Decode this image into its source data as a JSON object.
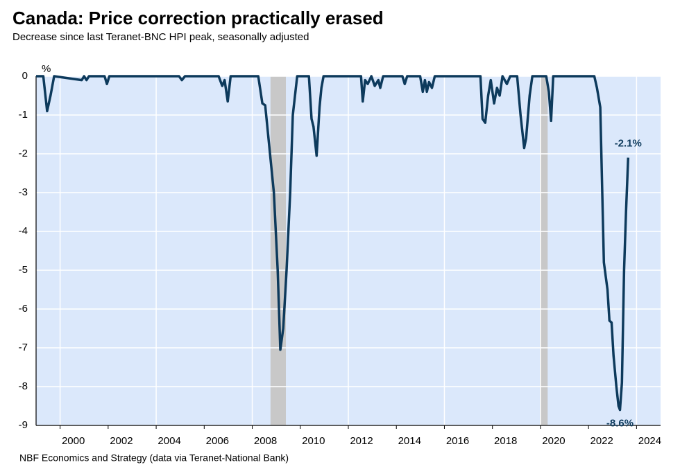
{
  "chart_data": {
    "type": "line",
    "title": "Canada: Price correction practically erased",
    "subtitle": "Decrease since last Teranet-BNC HPI peak, seasonally adjusted",
    "y_label": "%",
    "source": "NBF Economics and Strategy (data via Teranet-National Bank)",
    "x": [
      1999.0,
      1999.3,
      1999.46,
      1999.6,
      1999.75,
      2000.9,
      2001.0,
      2001.1,
      2001.2,
      2001.85,
      2001.95,
      2002.05,
      2004.95,
      2005.07,
      2005.2,
      2006.6,
      2006.75,
      2006.85,
      2006.98,
      2007.1,
      2008.25,
      2008.42,
      2008.54,
      2008.9,
      2009.06,
      2009.17,
      2009.29,
      2009.43,
      2009.58,
      2009.69,
      2009.87,
      2010.36,
      2010.47,
      2010.55,
      2010.68,
      2010.8,
      2010.88,
      2010.97,
      2012.53,
      2012.6,
      2012.7,
      2012.81,
      2012.96,
      2013.1,
      2013.25,
      2013.33,
      2013.45,
      2014.25,
      2014.35,
      2014.45,
      2014.99,
      2015.1,
      2015.19,
      2015.27,
      2015.36,
      2015.48,
      2015.6,
      2017.5,
      2017.59,
      2017.7,
      2017.82,
      2017.93,
      2018.07,
      2018.19,
      2018.3,
      2018.42,
      2018.6,
      2018.74,
      2018.88,
      2019.03,
      2019.17,
      2019.32,
      2019.4,
      2019.55,
      2019.66,
      2020.24,
      2020.35,
      2020.44,
      2020.53,
      2022.24,
      2022.35,
      2022.49,
      2022.64,
      2022.79,
      2022.87,
      2022.96,
      2023.04,
      2023.16,
      2023.25,
      2023.31,
      2023.39,
      2023.48,
      2023.56,
      2023.65
    ],
    "series": [
      {
        "name": "Canada",
        "color": "#0d3a5c",
        "values": [
          0,
          0,
          -0.9,
          -0.5,
          0,
          -0.1,
          0,
          -0.1,
          0,
          0,
          -0.2,
          0,
          0,
          -0.1,
          0,
          0,
          -0.25,
          -0.1,
          -0.65,
          0,
          0,
          -0.7,
          -0.75,
          -3.0,
          -5.0,
          -7.05,
          -6.5,
          -5.0,
          -3.0,
          -1.0,
          0,
          0,
          -1.1,
          -1.3,
          -2.05,
          -0.8,
          -0.3,
          0,
          0,
          -0.65,
          -0.1,
          -0.2,
          0,
          -0.25,
          -0.1,
          -0.3,
          0,
          0,
          -0.2,
          0,
          0,
          -0.4,
          -0.1,
          -0.4,
          -0.15,
          -0.3,
          0,
          0,
          -1.1,
          -1.2,
          -0.5,
          -0.1,
          -0.7,
          -0.3,
          -0.5,
          0,
          -0.2,
          0,
          0,
          0,
          -1.0,
          -1.85,
          -1.6,
          -0.5,
          0,
          0,
          -0.4,
          -1.15,
          0,
          0,
          -0.3,
          -0.8,
          -4.8,
          -5.5,
          -6.3,
          -6.35,
          -7.2,
          -8.0,
          -8.5,
          -8.6,
          -7.9,
          -5.0,
          -3.5,
          -2.1
        ]
      }
    ],
    "annotations": [
      {
        "text": "-2.1%",
        "x": 2023.65,
        "y": -2.1
      },
      {
        "text": "-8.6%",
        "x": 2023.31,
        "y": -8.6
      }
    ],
    "shaded_ranges": [
      [
        2008.76,
        2009.4
      ],
      [
        2020.0,
        2020.3
      ]
    ],
    "shade_color": "#c8c8c8",
    "plot_background": "#dbe8fb",
    "xlim": [
      1999,
      2025
    ],
    "xticks": [
      2000,
      2002,
      2004,
      2006,
      2008,
      2010,
      2012,
      2014,
      2016,
      2018,
      2020,
      2022,
      2024
    ],
    "xgrid": [
      2000,
      2004,
      2008,
      2012,
      2016,
      2020,
      2024
    ],
    "ylim": [
      -9,
      0
    ],
    "yticks": [
      0,
      -1,
      -2,
      -3,
      -4,
      -5,
      -6,
      -7,
      -8,
      -9
    ],
    "grid": true
  }
}
